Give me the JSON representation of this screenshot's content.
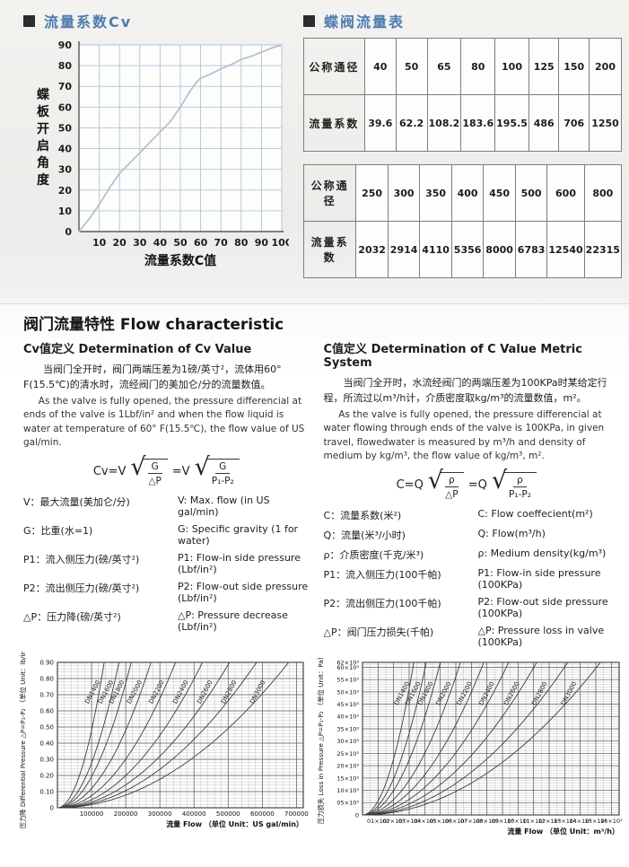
{
  "top": {
    "cv_title": "流量系数Cv",
    "table_title": "蝶阀流量表"
  },
  "flow_table": {
    "row_labels": [
      "公称通径",
      "流量系数"
    ],
    "groups": [
      {
        "diameters": [
          "40",
          "50",
          "65",
          "80",
          "100",
          "125",
          "150",
          "200"
        ],
        "coefficients": [
          "39.6",
          "62.2",
          "108.2",
          "183.6",
          "195.5",
          "486",
          "706",
          "1250"
        ]
      },
      {
        "diameters": [
          "250",
          "300",
          "350",
          "400",
          "450",
          "500",
          "600",
          "800"
        ],
        "coefficients": [
          "2032",
          "2914",
          "4110",
          "5356",
          "8000",
          "6783",
          "12540",
          "22315"
        ]
      }
    ]
  },
  "section": {
    "heading": "阀门流量特性 Flow characteristic",
    "left": {
      "subheading": "Cv值定义 Determination of Cv Value",
      "para_cn": "当阀门全开时，阀门两端压差为1磅/英寸²，流体用60° F(15.5℃)的清水时，流经阀门的美加仑/分的流量数值。",
      "para_en": "As the valve is fully opened, the pressure differencial at ends of the valve is 1Lbf/in² and when the flow liquid is water at temperature of 60° F(15.5℃), the flow value of US gal/min.",
      "formula": {
        "lhs": "Cv=V",
        "num": "G",
        "den": "△P",
        "eq": "=V",
        "den2": "P₁-P₂"
      },
      "defs": [
        {
          "cn": "V：最大流量(美加仑/分)",
          "en": "V: Max. flow (in US gal/min)"
        },
        {
          "cn": "G：比重(水=1)",
          "en": "G: Specific gravity (1 for water)"
        },
        {
          "cn": "P1：流入侧压力(磅/英寸²)",
          "en": "P1: Flow-in side pressure (Lbf/in²)"
        },
        {
          "cn": "P2：流出侧压力(磅/英寸²)",
          "en": "P2: Flow-out side pressure (Lbf/in²)"
        },
        {
          "cn": "△P：压力降(磅/英寸²)",
          "en": "△P: Pressure decrease (Lbf/in²)"
        }
      ]
    },
    "right": {
      "subheading": "C值定义 Determination of C Value Metric System",
      "para_cn": "当阀门全开时，水流经阀门的两端压差为100KPa时某给定行程，所流过以m³/h计，介质密度取kg/m³的流量数值，m²。",
      "para_en": "As the valve is fully opened, the pressure differencial at water flowing through ends of the valve is 100KPa, in given travel, flowedwater is measured by m³/h and density of medium by kg/m³, the flow value of kg/m³, m².",
      "formula": {
        "lhs": "C=Q",
        "num": "ρ",
        "den": "△P",
        "eq": "=Q",
        "den2": "P₁-P₂"
      },
      "defs": [
        {
          "cn": "C：流量系数(米²)",
          "en": "C: Flow coeffecient(m²)"
        },
        {
          "cn": "Q：流量(米³/小时)",
          "en": "Q: Flow(m³/h)"
        },
        {
          "cn": "ρ：介质密度(千克/米³)",
          "en": "ρ: Medium density(kg/m³)"
        },
        {
          "cn": "P1：流入侧压力(100千帕)",
          "en": "P1: Flow-in side pressure (100KPa)"
        },
        {
          "cn": "P2：流出侧压力(100千帕)",
          "en": "P2: Flow-out side pressure (100KPa)"
        },
        {
          "cn": "△P：阀门压力损失(千帕)",
          "en": "△P: Pressure loss in valve (100KPa)"
        }
      ]
    }
  },
  "colors": {
    "heading_blue": "#4d7cb2",
    "grid_blue": "#a9c6df",
    "curve_gray": "#b7c1c8",
    "chart_ink": "#3d3d3d"
  },
  "chart_data": [
    {
      "id": "cv-opening-curve",
      "type": "line",
      "title": "流量系数Cv",
      "xlabel": "流量系数C值",
      "ylabel": "蝶板开启角度",
      "xlim": [
        0,
        100
      ],
      "ylim": [
        0,
        90
      ],
      "grid": true,
      "x_ticks": [
        10,
        20,
        30,
        40,
        50,
        60,
        70,
        80,
        90,
        100
      ],
      "y_ticks": [
        0,
        10,
        20,
        30,
        40,
        50,
        60,
        70,
        80,
        90
      ],
      "points": [
        [
          0,
          0
        ],
        [
          5,
          6
        ],
        [
          10,
          13
        ],
        [
          15,
          21
        ],
        [
          20,
          28
        ],
        [
          25,
          33
        ],
        [
          30,
          38
        ],
        [
          35,
          43
        ],
        [
          40,
          48
        ],
        [
          45,
          53
        ],
        [
          50,
          60
        ],
        [
          55,
          68
        ],
        [
          58,
          72
        ],
        [
          60,
          74
        ],
        [
          65,
          76
        ],
        [
          70,
          78.5
        ],
        [
          75,
          80.5
        ],
        [
          80,
          83
        ],
        [
          85,
          84.5
        ],
        [
          90,
          86.5
        ],
        [
          95,
          88.5
        ],
        [
          100,
          90
        ]
      ]
    },
    {
      "id": "flow-drop-imperial",
      "type": "line",
      "ylabel": "压力降 Differential Pressure △P=P₁-P₂ （单位 Unit：lb/in²）",
      "xlabel": "流量 Flow （单位 Unit：US gal/min）",
      "xlim": [
        0,
        720000
      ],
      "ylim": [
        0,
        0.9
      ],
      "grid": true,
      "x_ticks": [
        "100000",
        "200000",
        "300000",
        "400000",
        "500000",
        "600000",
        "700000"
      ],
      "x_tick_values": [
        100000,
        200000,
        300000,
        400000,
        500000,
        600000,
        700000
      ],
      "y_ticks": [
        "0.90",
        "0.80",
        "0.70",
        "0.60",
        "0.50",
        "0.40",
        "0.30",
        "0.20",
        "0.10",
        "0"
      ],
      "y_tick_values": [
        0.9,
        0.8,
        0.7,
        0.6,
        0.5,
        0.4,
        0.3,
        0.2,
        0.1,
        0
      ],
      "x_minor_divisions": 5,
      "y_minor_divisions": 5,
      "curve_exponent": 2,
      "series": [
        {
          "name": "DN1400",
          "flow_at_max_drop": 137000
        },
        {
          "name": "DN1600",
          "flow_at_max_drop": 180000
        },
        {
          "name": "DN1800",
          "flow_at_max_drop": 216000
        },
        {
          "name": "DN2000",
          "flow_at_max_drop": 274000
        },
        {
          "name": "DN2200",
          "flow_at_max_drop": 346000
        },
        {
          "name": "DN2400",
          "flow_at_max_drop": 425000
        },
        {
          "name": "DN2600",
          "flow_at_max_drop": 504000
        },
        {
          "name": "DN2800",
          "flow_at_max_drop": 583000
        },
        {
          "name": "DN3000",
          "flow_at_max_drop": 677000
        }
      ]
    },
    {
      "id": "flow-loss-metric",
      "type": "line",
      "ylabel": "压力损失 Loss in Pressure △P=P₁-P₂ （单位 Unit：Pa）",
      "xlabel": "流量 Flow （单位 Unit：m³/h）",
      "xlim": [
        0,
        16500
      ],
      "ylim": [
        0,
        62000
      ],
      "grid": true,
      "x_ticks": [
        "01×10³",
        "02×10³",
        "03×10³",
        "04×10³",
        "05×10³",
        "06×10³",
        "07×10³",
        "08×10³",
        "09×10³",
        "10×10³",
        "11×10³",
        "12×10³",
        "13×10³",
        "14×10³",
        "15×10³",
        "16×10³"
      ],
      "x_tick_values": [
        1000,
        2000,
        3000,
        4000,
        5000,
        6000,
        7000,
        8000,
        9000,
        10000,
        11000,
        12000,
        13000,
        14000,
        15000,
        16000
      ],
      "y_ticks": [
        "62×10³",
        "60×10³",
        "55×10³",
        "50×10³",
        "45×10³",
        "40×10³",
        "35×10³",
        "30×10³",
        "25×10³",
        "20×10³",
        "15×10³",
        "10×10³",
        "05×10³",
        "0"
      ],
      "y_tick_values": [
        62000,
        60000,
        55000,
        50000,
        45000,
        40000,
        35000,
        30000,
        25000,
        20000,
        15000,
        10000,
        5000,
        0
      ],
      "x_minor_divisions": 2,
      "y_minor_divisions": 5,
      "curve_exponent": 2,
      "series": [
        {
          "name": "DN1400",
          "flow_at_max_loss": 3300
        },
        {
          "name": "DN1600",
          "flow_at_max_loss": 4100
        },
        {
          "name": "DN1800",
          "flow_at_max_loss": 5000
        },
        {
          "name": "DN2000",
          "flow_at_max_loss": 6300
        },
        {
          "name": "DN2200",
          "flow_at_max_loss": 7800
        },
        {
          "name": "DN2400",
          "flow_at_max_loss": 9400
        },
        {
          "name": "DN2600",
          "flow_at_max_loss": 11200
        },
        {
          "name": "DN2800",
          "flow_at_max_loss": 13200
        },
        {
          "name": "DN3000",
          "flow_at_max_loss": 15300
        }
      ]
    }
  ]
}
